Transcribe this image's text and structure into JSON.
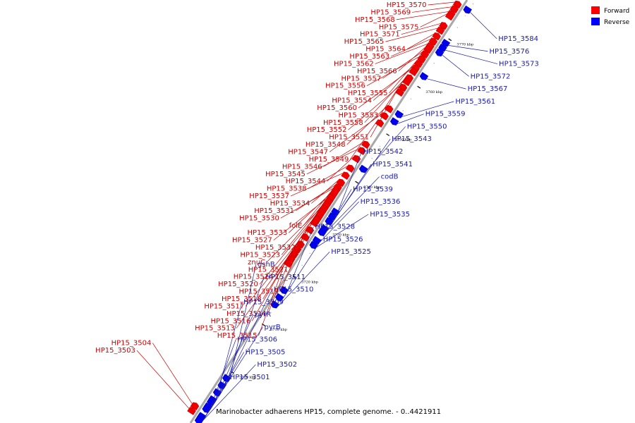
{
  "caption": "Marinobacter adhaerens HP15, complete genome. - 0..4421911",
  "legend": {
    "forward_label": "Forward",
    "reverse_label": "Reverse",
    "forward_color": "#ff0000",
    "reverse_color": "#0000ff"
  },
  "colors": {
    "forward_feature": "#ee0000",
    "forward_label": "#cc0000",
    "reverse_feature": "#0000ee",
    "reverse_label": "#1a1ab0",
    "backbone": "#a8a8a8",
    "tick": "#111111"
  },
  "axis_range_kbp": [
    3689,
    3777
  ],
  "ticks": [
    "3690 kbp",
    "3700 kbp",
    "3710 kbp",
    "3720 kbp",
    "3730 kbp",
    "3740 kbp",
    "3750 kbp",
    "3760 kbp",
    "3770 kbp"
  ],
  "forward_genes": [
    {
      "name": "HP15_3570",
      "pos": 3776.0
    },
    {
      "name": "HP15_3569",
      "pos": 3775.0
    },
    {
      "name": "HP15_3568",
      "pos": 3774.0
    },
    {
      "name": "HP15_3575",
      "pos": 3773.5
    },
    {
      "name": "HP15_3571",
      "pos": 3771.5
    },
    {
      "name": "HP15_3565",
      "pos": 3770.5
    },
    {
      "name": "HP15_3564",
      "pos": 3769.3
    },
    {
      "name": "HP15_3563",
      "pos": 3768.2
    },
    {
      "name": "HP15_3562",
      "pos": 3767.2
    },
    {
      "name": "HP15_3566",
      "pos": 3766.5
    },
    {
      "name": "HP15_3557",
      "pos": 3765.5
    },
    {
      "name": "HP15_3556",
      "pos": 3764.5
    },
    {
      "name": "HP15_3555",
      "pos": 3763.5
    },
    {
      "name": "HP15_3554",
      "pos": 3762.5
    },
    {
      "name": "HP15_3560",
      "pos": 3761.8
    },
    {
      "name": "HP15_3553",
      "pos": 3760.5
    },
    {
      "name": "HP15_3558",
      "pos": 3759.7
    },
    {
      "name": "HP15_3552",
      "pos": 3758.5
    },
    {
      "name": "HP15_3551",
      "pos": 3757.5
    },
    {
      "name": "HP15_3548",
      "pos": 3754.0
    },
    {
      "name": "HP15_3547",
      "pos": 3752.5
    },
    {
      "name": "HP15_3549",
      "pos": 3751.0
    },
    {
      "name": "HP15_3546",
      "pos": 3746.5
    },
    {
      "name": "HP15_3545",
      "pos": 3745.2
    },
    {
      "name": "HP15_3544",
      "pos": 3743.5
    },
    {
      "name": "HP15_3538",
      "pos": 3741.5
    },
    {
      "name": "HP15_3537",
      "pos": 3740.0
    },
    {
      "name": "HP15_3534",
      "pos": 3738.5
    },
    {
      "name": "HP15_3531",
      "pos": 3737.5
    },
    {
      "name": "HP15_3530",
      "pos": 3736.8
    },
    {
      "name": "folE",
      "pos": 3736.0
    },
    {
      "name": "HP15_3533",
      "pos": 3735.3
    },
    {
      "name": "HP15_3527",
      "pos": 3734.5
    },
    {
      "name": "HP15_3532",
      "pos": 3733.8
    },
    {
      "name": "HP15_3523",
      "pos": 3733.0
    },
    {
      "name": "znuC",
      "pos": 3732.3
    },
    {
      "name": "HP15_3521",
      "pos": 3731.5
    },
    {
      "name": "HP15_3524",
      "pos": 3730.8
    },
    {
      "name": "HP15_3520",
      "pos": 3730.0
    },
    {
      "name": "HP15_3519",
      "pos": 3728.5
    },
    {
      "name": "HP15_3518",
      "pos": 3727.0
    },
    {
      "name": "HP15_3517",
      "pos": 3725.5
    },
    {
      "name": "HP15_3514",
      "pos": 3724.5
    },
    {
      "name": "HP15_3516",
      "pos": 3723.5
    },
    {
      "name": "HP15_3513",
      "pos": 3722.5
    },
    {
      "name": "HP15_3515",
      "pos": 3721.5
    },
    {
      "name": "HP15_3504",
      "pos": 3691.5
    },
    {
      "name": "HP15_3503",
      "pos": 3690.5
    }
  ],
  "reverse_genes": [
    {
      "name": "HP15_3584",
      "pos": 3776.0
    },
    {
      "name": "HP15_3576",
      "pos": 3769.0
    },
    {
      "name": "HP15_3573",
      "pos": 3768.0
    },
    {
      "name": "HP15_3572",
      "pos": 3767.0
    },
    {
      "name": "HP15_3567",
      "pos": 3762.0
    },
    {
      "name": "HP15_3561",
      "pos": 3754.0
    },
    {
      "name": "HP15_3559",
      "pos": 3752.5
    },
    {
      "name": "HP15_3550",
      "pos": 3742.5
    },
    {
      "name": "HP15_3543",
      "pos": 3733.5
    },
    {
      "name": "HP15_3542",
      "pos": 3732.5
    },
    {
      "name": "HP15_3541",
      "pos": 3731.5
    },
    {
      "name": "codB",
      "pos": 3730.0
    },
    {
      "name": "HP15_3539",
      "pos": 3729.2
    },
    {
      "name": "HP15_3536",
      "pos": 3727.5
    },
    {
      "name": "HP15_3535",
      "pos": 3726.5
    },
    {
      "name": "HP15_3528",
      "pos": 3717.0
    },
    {
      "name": "HP15_3526",
      "pos": 3715.5
    },
    {
      "name": "HP15_3525",
      "pos": 3714.0
    },
    {
      "name": "gshB",
      "pos": 3698.5
    },
    {
      "name": "HP15_3511",
      "pos": 3697.0
    },
    {
      "name": "HP15_3510",
      "pos": 3695.5
    },
    {
      "name": "HP15_3509",
      "pos": 3694.0
    },
    {
      "name": "pyrR",
      "pos": 3693.5
    },
    {
      "name": "pyrB",
      "pos": 3692.5
    },
    {
      "name": "HP15_3506",
      "pos": 3692.0
    },
    {
      "name": "HP15_3505",
      "pos": 3690.5
    },
    {
      "name": "HP15_3502",
      "pos": 3690.2
    },
    {
      "name": "HP15_3501",
      "pos": 3689.6
    }
  ]
}
